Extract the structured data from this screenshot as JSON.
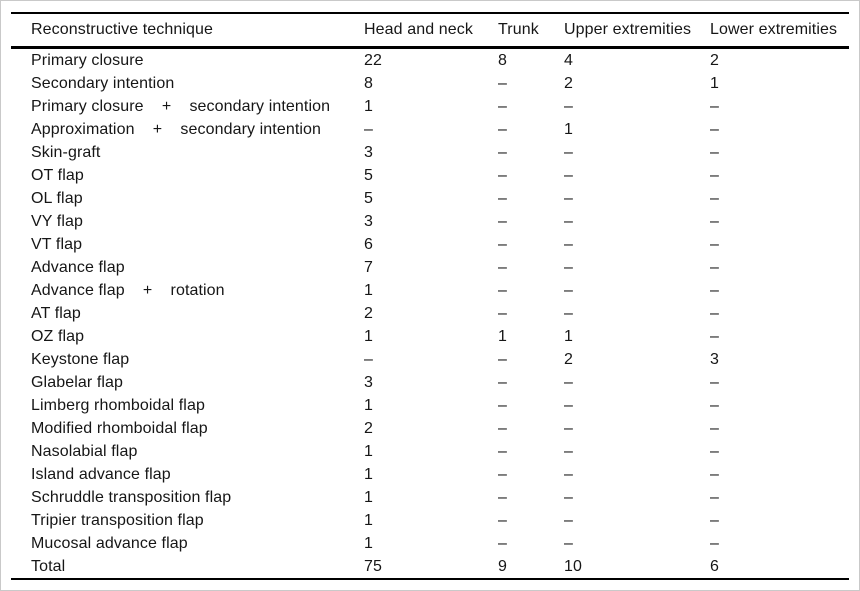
{
  "table": {
    "columns": [
      {
        "key": "technique",
        "label": "Reconstructive technique"
      },
      {
        "key": "head_and_neck",
        "label": "Head and neck"
      },
      {
        "key": "trunk",
        "label": "Trunk"
      },
      {
        "key": "upper_extremities",
        "label": "Upper extremities"
      },
      {
        "key": "lower_extremities",
        "label": "Lower extremities"
      }
    ],
    "empty_marker": "–",
    "rows": [
      [
        "Primary closure",
        "22",
        "8",
        "4",
        "2"
      ],
      [
        "Secondary intention",
        "8",
        "–",
        "2",
        "1"
      ],
      [
        "Primary closure    +    secondary intention",
        "1",
        "–",
        "–",
        "–"
      ],
      [
        "Approximation    +    secondary intention",
        "–",
        "–",
        "1",
        "–"
      ],
      [
        "Skin-graft",
        "3",
        "–",
        "–",
        "–"
      ],
      [
        "OT flap",
        "5",
        "–",
        "–",
        "–"
      ],
      [
        "OL flap",
        "5",
        "–",
        "–",
        "–"
      ],
      [
        "VY flap",
        "3",
        "–",
        "–",
        "–"
      ],
      [
        "VT flap",
        "6",
        "–",
        "–",
        "–"
      ],
      [
        "Advance flap",
        "7",
        "–",
        "–",
        "–"
      ],
      [
        "Advance flap    +    rotation",
        "1",
        "–",
        "–",
        "–"
      ],
      [
        "AT flap",
        "2",
        "–",
        "–",
        "–"
      ],
      [
        "OZ flap",
        "1",
        "1",
        "1",
        "–"
      ],
      [
        "Keystone flap",
        "–",
        "–",
        "2",
        "3"
      ],
      [
        "Glabelar flap",
        "3",
        "–",
        "–",
        "–"
      ],
      [
        "Limberg rhomboidal flap",
        "1",
        "–",
        "–",
        "–"
      ],
      [
        "Modified rhomboidal flap",
        "2",
        "–",
        "–",
        "–"
      ],
      [
        "Nasolabial flap",
        "1",
        "–",
        "–",
        "–"
      ],
      [
        "Island advance flap",
        "1",
        "–",
        "–",
        "–"
      ],
      [
        "Schruddle transposition flap",
        "1",
        "–",
        "–",
        "–"
      ],
      [
        "Tripier transposition flap",
        "1",
        "–",
        "–",
        "–"
      ],
      [
        "Mucosal advance flap",
        "1",
        "–",
        "–",
        "–"
      ],
      [
        "Total",
        "75",
        "9",
        "10",
        "6"
      ]
    ]
  },
  "colors": {
    "text": "#161616",
    "rule": "#000000",
    "frame": "#c9c9c9",
    "background": "#ffffff"
  }
}
